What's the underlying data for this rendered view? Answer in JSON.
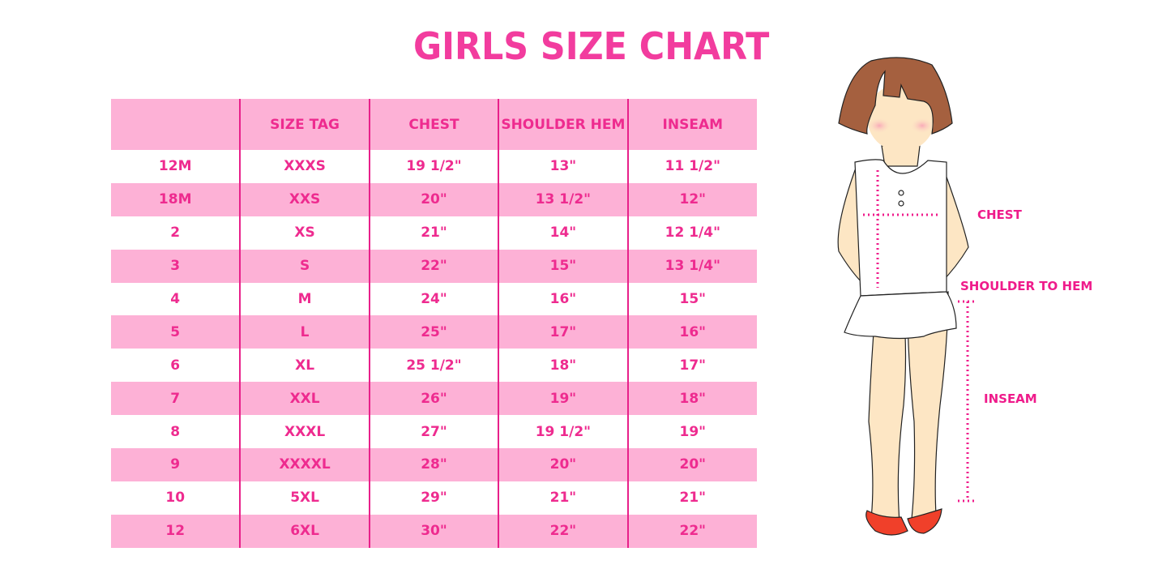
{
  "title": "GIRLS SIZE CHART",
  "table": {
    "headers": [
      "",
      "SIZE TAG",
      "CHEST",
      "SHOULDER HEM",
      "INSEAM"
    ],
    "rows": [
      [
        "12M",
        "XXXS",
        "19 1/2\"",
        "13\"",
        "11 1/2\""
      ],
      [
        "18M",
        "XXS",
        "20\"",
        "13 1/2\"",
        "12\""
      ],
      [
        "2",
        "XS",
        "21\"",
        "14\"",
        "12 1/4\""
      ],
      [
        "3",
        "S",
        "22\"",
        "15\"",
        "13 1/4\""
      ],
      [
        "4",
        "M",
        "24\"",
        "16\"",
        "15\""
      ],
      [
        "5",
        "L",
        "25\"",
        "17\"",
        "16\""
      ],
      [
        "6",
        "XL",
        "25 1/2\"",
        "18\"",
        "17\""
      ],
      [
        "7",
        "XXL",
        "26\"",
        "19\"",
        "18\""
      ],
      [
        "8",
        "XXXL",
        "27\"",
        "19 1/2\"",
        "19\""
      ],
      [
        "9",
        "XXXXL",
        "28\"",
        "20\"",
        "20\""
      ],
      [
        "10",
        "5XL",
        "29\"",
        "21\"",
        "21\""
      ],
      [
        "12",
        "6XL",
        "30\"",
        "22\"",
        "22\""
      ]
    ]
  },
  "figure": {
    "labels": {
      "chest": "CHEST",
      "shoulder": "SHOULDER TO HEM",
      "inseam": "INSEAM"
    }
  },
  "colors": {
    "accent": "#ee2b8f",
    "row_pink": "#fdb1d6",
    "hair": "#a5603f",
    "skin": "#fde6c4",
    "shoes": "#f0402a"
  }
}
